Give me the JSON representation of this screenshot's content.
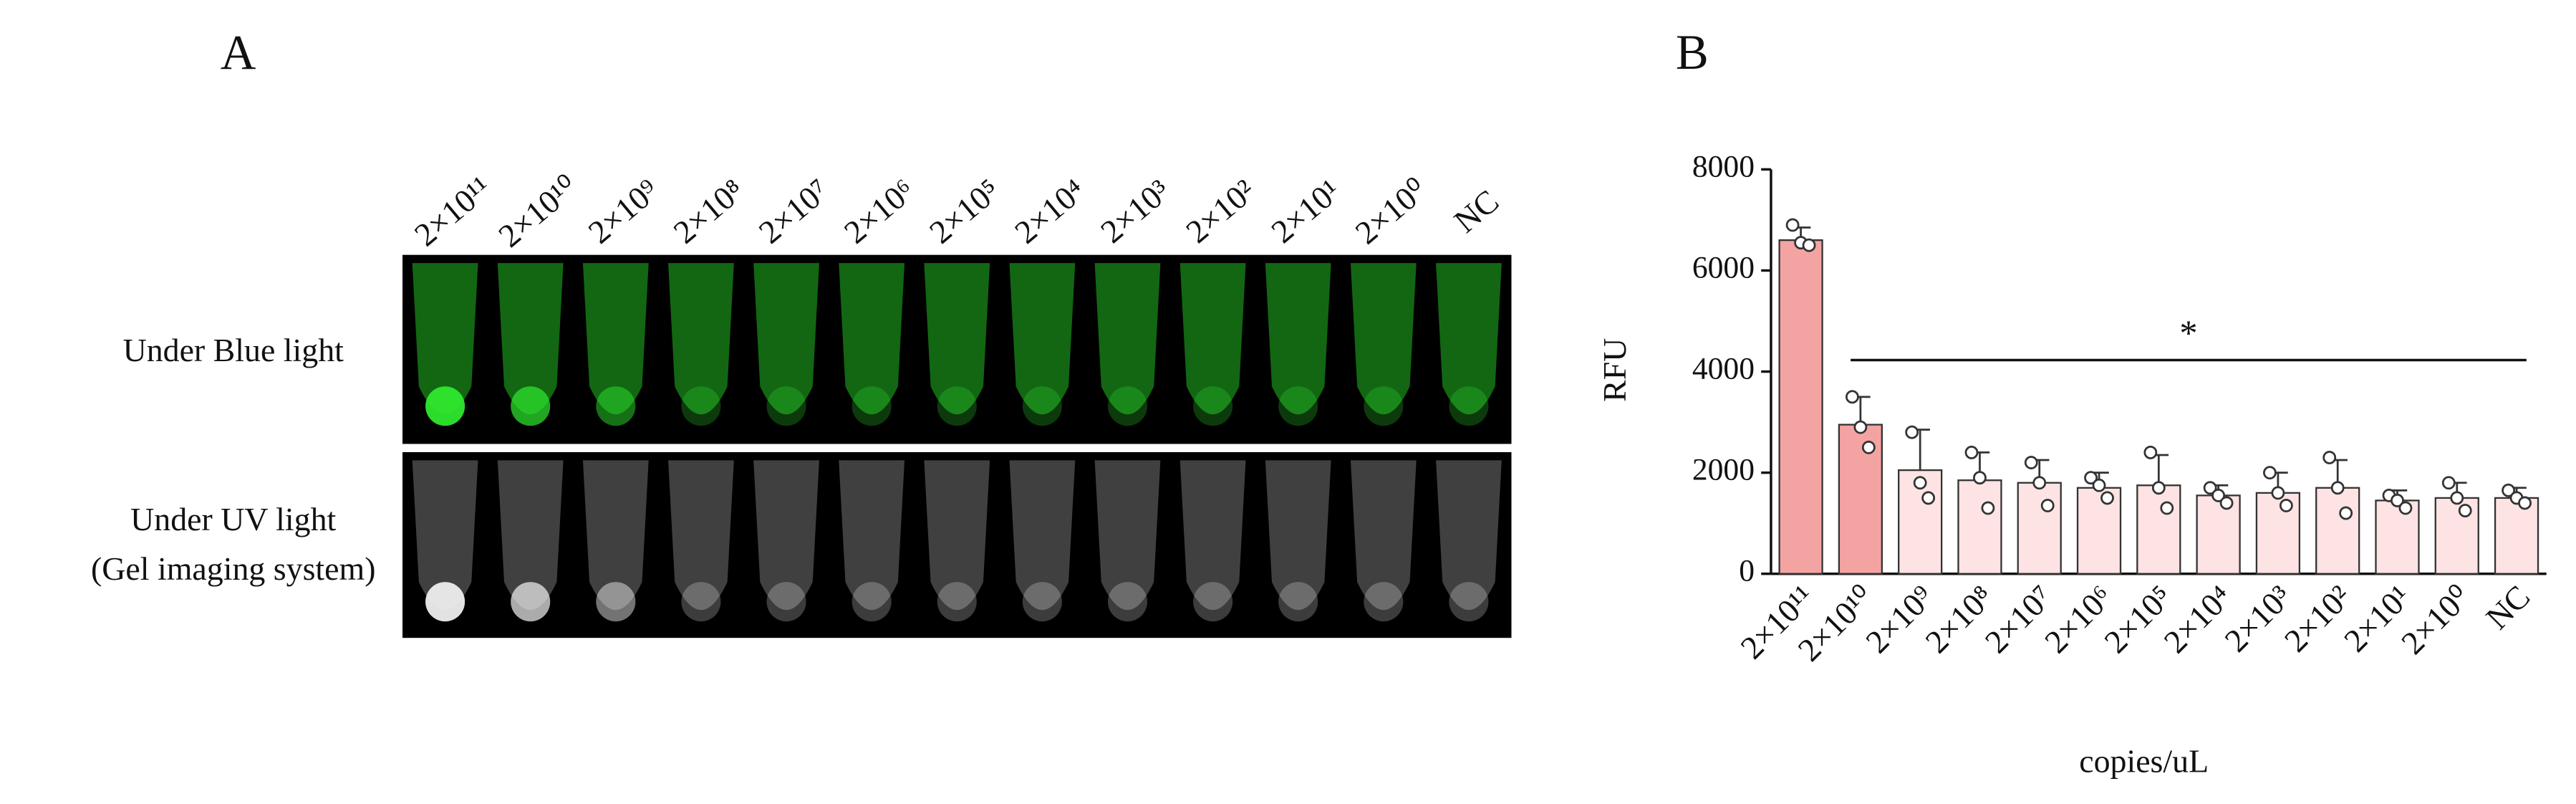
{
  "panel_a": {
    "label": "A",
    "columns": [
      "2×10¹¹",
      "2×10¹⁰",
      "2×10⁹",
      "2×10⁸",
      "2×10⁷",
      "2×10⁶",
      "2×10⁵",
      "2×10⁴",
      "2×10³",
      "2×10²",
      "2×10¹",
      "2×10⁰",
      "NC"
    ],
    "rows": [
      "Under Blue light",
      "Under UV light",
      "(Gel imaging system)"
    ]
  },
  "chart_data": {
    "type": "bar",
    "label": "B",
    "categories": [
      "2×10¹¹",
      "2×10¹⁰",
      "2×10⁹",
      "2×10⁸",
      "2×10⁷",
      "2×10⁶",
      "2×10⁵",
      "2×10⁴",
      "2×10³",
      "2×10²",
      "2×10¹",
      "2×10⁰",
      "NC"
    ],
    "values": [
      6600,
      2950,
      2050,
      1850,
      1800,
      1700,
      1750,
      1550,
      1600,
      1700,
      1450,
      1500,
      1500
    ],
    "errors": [
      250,
      550,
      800,
      550,
      450,
      300,
      600,
      200,
      400,
      550,
      200,
      300,
      200
    ],
    "points": [
      [
        6900,
        6550,
        6500
      ],
      [
        3500,
        2900,
        2500
      ],
      [
        2800,
        1800,
        1500
      ],
      [
        2400,
        1900,
        1300
      ],
      [
        2200,
        1800,
        1350
      ],
      [
        1900,
        1750,
        1500
      ],
      [
        2400,
        1700,
        1300
      ],
      [
        1700,
        1550,
        1400
      ],
      [
        2000,
        1600,
        1350
      ],
      [
        2300,
        1700,
        1200
      ],
      [
        1550,
        1450,
        1300
      ],
      [
        1800,
        1500,
        1250
      ],
      [
        1650,
        1500,
        1400
      ]
    ],
    "colors": [
      "#f4a3a3",
      "#f4a3a3",
      "#fde3e3",
      "#fde3e3",
      "#fde3e3",
      "#fde3e3",
      "#fde3e3",
      "#fde3e3",
      "#fde3e3",
      "#fde3e3",
      "#fde3e3",
      "#fde3e3",
      "#fde3e3"
    ],
    "edge_color": "#333333",
    "ylim": [
      0,
      8000
    ],
    "yticks": [
      0,
      2000,
      4000,
      6000,
      8000
    ],
    "ylabel": "RFU",
    "xlabel": "copies/uL",
    "annotation": "*"
  }
}
